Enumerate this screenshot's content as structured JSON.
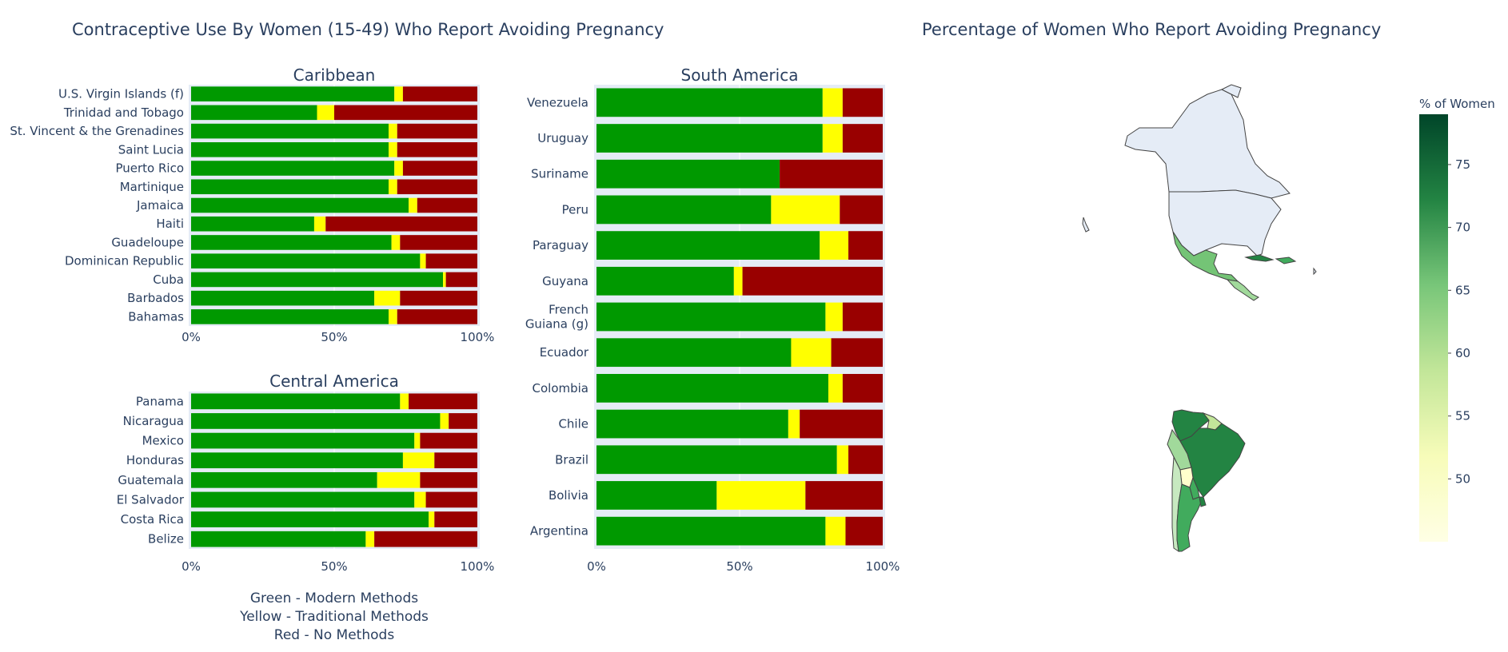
{
  "titles": {
    "left": "Contraceptive Use By Women (15-49) Who Report Avoiding Pregnancy",
    "right": "Percentage of Women Who Report Avoiding Pregnancy"
  },
  "notes": [
    "Green - Modern Methods",
    "Yellow - Traditional Methods",
    "Red - No Methods"
  ],
  "colors": {
    "modern": "#009900",
    "traditional": "#ffff00",
    "none": "#990000",
    "panel_bg": "#e5ecf6"
  },
  "chart_data": [
    {
      "type": "bar",
      "orientation": "horizontal-stacked-100",
      "title": "Caribbean",
      "xlim": [
        0,
        100
      ],
      "x_ticks": [
        "0%",
        "50%",
        "100%"
      ],
      "categories": [
        "U.S. Virgin Islands (f)",
        "Trinidad and Tobago",
        "St. Vincent & the Grenadines",
        "Saint Lucia",
        "Puerto Rico",
        "Martinique",
        "Jamaica",
        "Haiti",
        "Guadeloupe",
        "Dominican Republic",
        "Cuba",
        "Barbados",
        "Bahamas"
      ],
      "series": [
        {
          "name": "Modern Methods",
          "values": [
            71,
            44,
            69,
            69,
            71,
            69,
            76,
            43,
            70,
            80,
            88,
            64,
            69
          ]
        },
        {
          "name": "Traditional Methods",
          "values": [
            3,
            6,
            3,
            3,
            3,
            3,
            3,
            4,
            3,
            2,
            1,
            9,
            3
          ]
        },
        {
          "name": "No Methods",
          "values": [
            26,
            50,
            28,
            28,
            26,
            28,
            21,
            53,
            27,
            18,
            11,
            27,
            28
          ]
        }
      ]
    },
    {
      "type": "bar",
      "orientation": "horizontal-stacked-100",
      "title": "Central America",
      "xlim": [
        0,
        100
      ],
      "x_ticks": [
        "0%",
        "50%",
        "100%"
      ],
      "categories": [
        "Panama",
        "Nicaragua",
        "Mexico",
        "Honduras",
        "Guatemala",
        "El Salvador",
        "Costa Rica",
        "Belize"
      ],
      "series": [
        {
          "name": "Modern Methods",
          "values": [
            73,
            87,
            78,
            74,
            65,
            78,
            83,
            61
          ]
        },
        {
          "name": "Traditional Methods",
          "values": [
            3,
            3,
            2,
            11,
            15,
            4,
            2,
            3
          ]
        },
        {
          "name": "No Methods",
          "values": [
            24,
            10,
            20,
            15,
            20,
            18,
            15,
            36
          ]
        }
      ]
    },
    {
      "type": "bar",
      "orientation": "horizontal-stacked-100",
      "title": "South America",
      "xlim": [
        0,
        100
      ],
      "x_ticks": [
        "0%",
        "50%",
        "100%"
      ],
      "categories": [
        "Venezuela",
        "Uruguay",
        "Suriname",
        "Peru",
        "Paraguay",
        "Guyana",
        "French Guiana (g)",
        "Ecuador",
        "Colombia",
        "Chile",
        "Brazil",
        "Bolivia",
        "Argentina"
      ],
      "series": [
        {
          "name": "Modern Methods",
          "values": [
            79,
            79,
            64,
            61,
            78,
            48,
            80,
            68,
            81,
            67,
            84,
            42,
            80
          ]
        },
        {
          "name": "Traditional Methods",
          "values": [
            7,
            7,
            0,
            24,
            10,
            3,
            6,
            14,
            5,
            4,
            4,
            31,
            7
          ]
        },
        {
          "name": "No Methods",
          "values": [
            14,
            14,
            36,
            15,
            12,
            49,
            14,
            18,
            14,
            29,
            12,
            27,
            13
          ]
        }
      ]
    },
    {
      "type": "map",
      "title": "Percentage of Women Who Report Avoiding Pregnancy",
      "colorbar": {
        "title": "% of Women",
        "ticks": [
          50,
          55,
          60,
          65,
          70,
          75
        ],
        "range": [
          45,
          79
        ]
      }
    }
  ]
}
